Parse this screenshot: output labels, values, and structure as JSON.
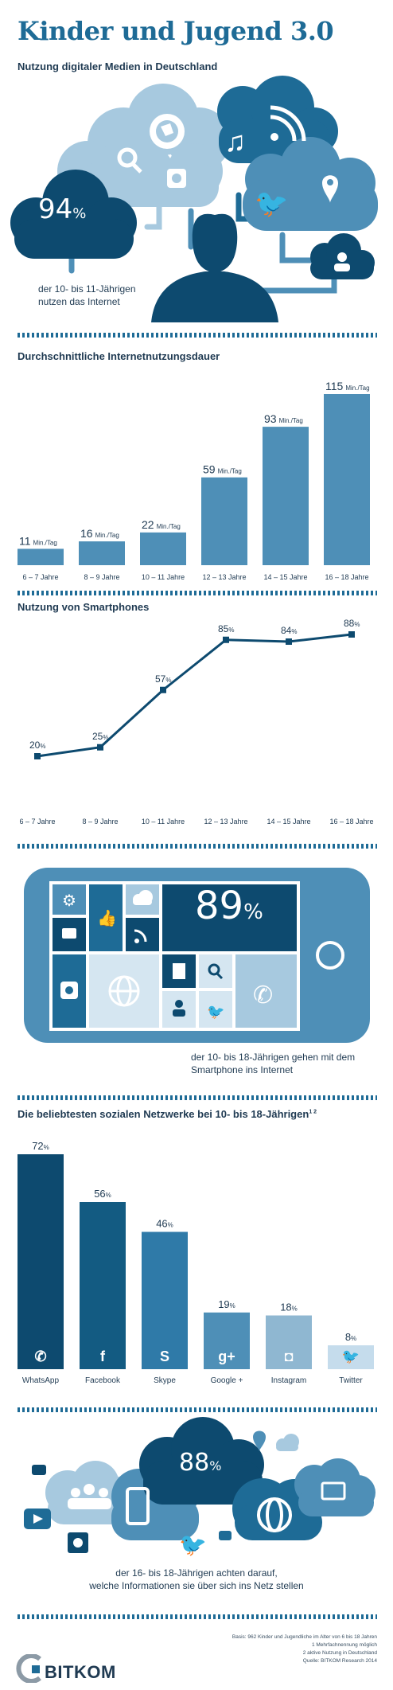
{
  "header": {
    "title": "Kinder und Jugend 3.0",
    "subtitle": "Nutzung digitaler Medien in Deutschland"
  },
  "hero": {
    "percent_value": "94",
    "percent_sign": "%",
    "caption_line1": "der 10- bis 11-Jährigen",
    "caption_line2": "nutzen das Internet"
  },
  "colors": {
    "dark": "#0d4a6f",
    "medium": "#1e6b96",
    "bar": "#4e8fb7",
    "light": "#a7c9df",
    "pale": "#d5e6f1"
  },
  "chart_data": [
    {
      "type": "bar",
      "title": "Durchschnittliche Internetnutzungsdauer",
      "categories": [
        "6 – 7 Jahre",
        "8 – 9 Jahre",
        "10 – 11 Jahre",
        "12 – 13 Jahre",
        "14 – 15 Jahre",
        "16 – 18 Jahre"
      ],
      "values": [
        11,
        16,
        22,
        59,
        93,
        115
      ],
      "unit": "Min./Tag",
      "ylim": [
        0,
        115
      ]
    },
    {
      "type": "line",
      "title": "Nutzung von Smartphones",
      "categories": [
        "6 – 7 Jahre",
        "8 – 9 Jahre",
        "10 – 11 Jahre",
        "12 – 13 Jahre",
        "14 – 15 Jahre",
        "16 – 18 Jahre"
      ],
      "values": [
        20,
        25,
        57,
        85,
        84,
        88
      ],
      "unit": "%",
      "ylim": [
        0,
        100
      ]
    },
    {
      "type": "bar",
      "title": "Die beliebtesten sozialen Netzwerke bei 10- bis 18-Jährigen",
      "title_superscript": "1 2",
      "categories": [
        "WhatsApp",
        "Facebook",
        "Skype",
        "Google +",
        "Instagram",
        "Twitter"
      ],
      "values": [
        72,
        56,
        46,
        19,
        18,
        8
      ],
      "unit": "%",
      "ylim": [
        0,
        72
      ],
      "bar_colors": [
        "#0d4a6f",
        "#135b82",
        "#2f7aa8",
        "#4e8fb7",
        "#8fb7d1",
        "#c5dcec"
      ],
      "icons": [
        "whatsapp-icon",
        "facebook-icon",
        "skype-icon",
        "google-plus-icon",
        "instagram-icon",
        "twitter-icon"
      ],
      "icon_glyphs": [
        "✆",
        "f",
        "S",
        "g+",
        "◘",
        "🐦"
      ]
    }
  ],
  "phone": {
    "percent_value": "89",
    "percent_sign": "%",
    "caption_line1": "der 10- bis 18-Jährigen gehen mit dem",
    "caption_line2": "Smartphone ins Internet"
  },
  "privacy": {
    "percent_value": "88",
    "percent_sign": "%",
    "caption_line1": "der 16- bis 18-Jährigen achten darauf,",
    "caption_line2": "welche Informationen sie über sich ins Netz stellen"
  },
  "footer": {
    "notes": [
      "Basis: 962 Kinder und Jugendliche im Alter von 6 bis 18 Jahren",
      "1 Mehrfachnennung möglich",
      "2 aktive Nutzung in Deutschland",
      "Quelle: BITKOM Research 2014"
    ],
    "logo": "BITKOM"
  }
}
